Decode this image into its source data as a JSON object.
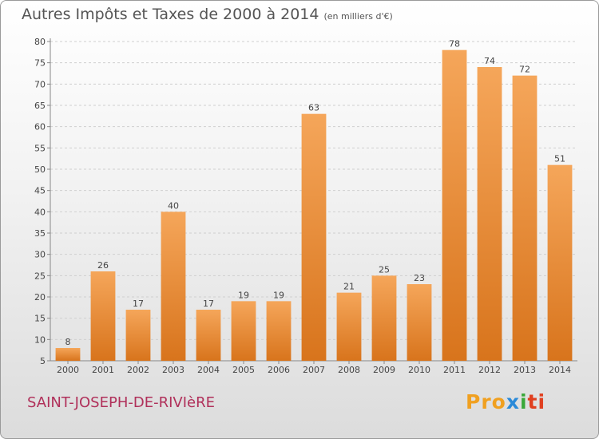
{
  "header": {
    "title": "Autres Impôts et Taxes de 2000 à 2014",
    "unit": "(en milliers d'€)"
  },
  "footer": {
    "town": "SAINT-JOSEPH-DE-RIVIèRE",
    "logo_parts": [
      "Pro",
      "x",
      "i",
      "ti"
    ]
  },
  "colors": {
    "bar_light": "#f5a65a",
    "bar_dark": "#d8741c",
    "grid": "#cfcfcf",
    "text": "#444444"
  },
  "chart_data": {
    "type": "bar",
    "title": "Autres Impôts et Taxes de 2000 à 2014",
    "subtitle": "(en milliers d'€)",
    "xlabel": "",
    "ylabel": "",
    "categories": [
      "2000",
      "2001",
      "2002",
      "2003",
      "2004",
      "2005",
      "2006",
      "2007",
      "2008",
      "2009",
      "2010",
      "2011",
      "2012",
      "2013",
      "2014"
    ],
    "values": [
      8,
      26,
      17,
      40,
      17,
      19,
      19,
      63,
      21,
      25,
      23,
      78,
      74,
      72,
      51
    ],
    "ylim": [
      5,
      80
    ],
    "yticks": [
      5,
      10,
      15,
      20,
      25,
      30,
      35,
      40,
      45,
      50,
      55,
      60,
      65,
      70,
      75,
      80
    ],
    "grid": true,
    "legend": "none",
    "data_labels": true
  }
}
